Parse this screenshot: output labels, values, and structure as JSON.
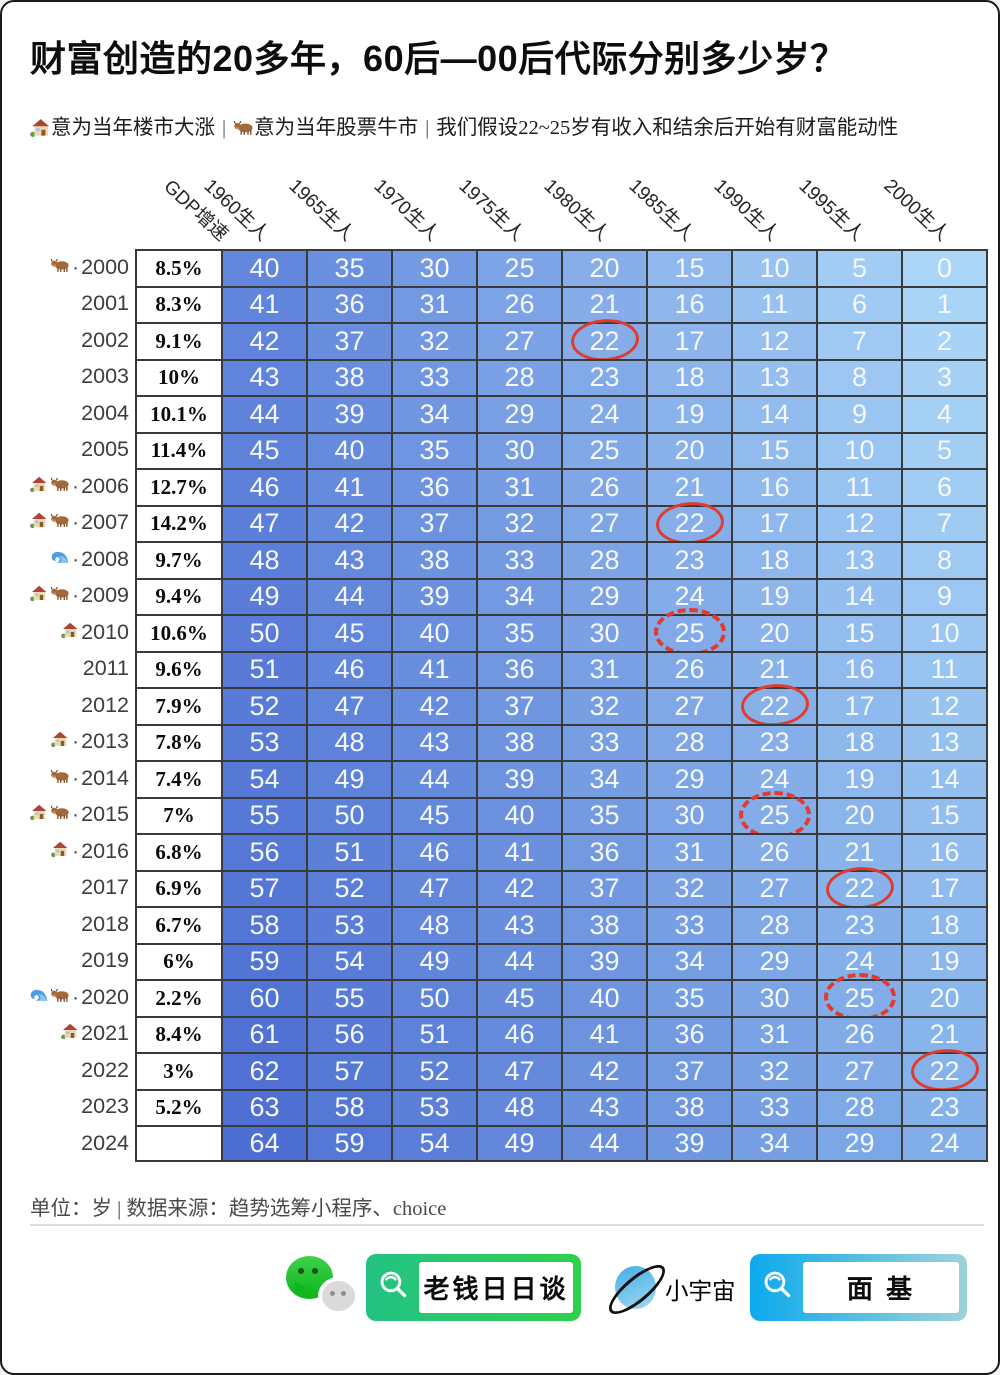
{
  "title": "财富创造的20多年，60后—00后代际分别多少岁？",
  "legend": {
    "separator": "|",
    "housing_icon": "house-icon",
    "housing_text": "意为当年楼市大涨",
    "stock_icon": "ox-icon",
    "stock_text": "意为当年股票牛市",
    "assumption_text": "我们假设22~25岁有收入和结余后开始有财富能动性"
  },
  "chart_data": {
    "type": "table",
    "title": "财富创造的20多年，60后—00后代际分别多少岁？",
    "unit_note": "单位：岁 | 数据来源：趋势选筹小程序、choice",
    "columns": [
      "GDP增速",
      "1960生人",
      "1965生人",
      "1970生人",
      "1975生人",
      "1980生人",
      "1985生人",
      "1990生人",
      "1995生人",
      "2000生人"
    ],
    "grid_line_color": "#3a3a3a",
    "circle_color": "#e23b2e",
    "column_colors_top": [
      "#6286DC",
      "#6B90DF",
      "#749AE3",
      "#7DA4E6",
      "#87AEE9",
      "#90B8ED",
      "#99C2F0",
      "#A2CCF4",
      "#ABD6F7"
    ],
    "column_colors_bottom": [
      "#4E6FD2",
      "#5577D5",
      "#5B7FD8",
      "#6287DA",
      "#698FDD",
      "#6F97E0",
      "#769FE3",
      "#7CA7E6",
      "#82AFE9"
    ],
    "rows": [
      {
        "year": "2000",
        "icons": [
          "ox-icon"
        ],
        "sep": "·",
        "gdp": "8.5%",
        "ages": [
          40,
          35,
          30,
          25,
          20,
          15,
          10,
          5,
          0
        ],
        "circle": null
      },
      {
        "year": "2001",
        "icons": [],
        "sep": "",
        "gdp": "8.3%",
        "ages": [
          41,
          36,
          31,
          26,
          21,
          16,
          11,
          6,
          1
        ],
        "circle": null
      },
      {
        "year": "2002",
        "icons": [],
        "sep": "",
        "gdp": "9.1%",
        "ages": [
          42,
          37,
          32,
          27,
          22,
          17,
          12,
          7,
          2
        ],
        "circle": {
          "col": 4,
          "style": "solid"
        }
      },
      {
        "year": "2003",
        "icons": [],
        "sep": "",
        "gdp": "10%",
        "ages": [
          43,
          38,
          33,
          28,
          23,
          18,
          13,
          8,
          3
        ],
        "circle": null
      },
      {
        "year": "2004",
        "icons": [],
        "sep": "",
        "gdp": "10.1%",
        "ages": [
          44,
          39,
          34,
          29,
          24,
          19,
          14,
          9,
          4
        ],
        "circle": null
      },
      {
        "year": "2005",
        "icons": [],
        "sep": "",
        "gdp": "11.4%",
        "ages": [
          45,
          40,
          35,
          30,
          25,
          20,
          15,
          10,
          5
        ],
        "circle": null
      },
      {
        "year": "2006",
        "icons": [
          "house-icon",
          "ox-icon"
        ],
        "sep": "·",
        "gdp": "12.7%",
        "ages": [
          46,
          41,
          36,
          31,
          26,
          21,
          16,
          11,
          6
        ],
        "circle": null
      },
      {
        "year": "2007",
        "icons": [
          "house-icon",
          "ox-icon"
        ],
        "sep": "·",
        "gdp": "14.2%",
        "ages": [
          47,
          42,
          37,
          32,
          27,
          22,
          17,
          12,
          7
        ],
        "circle": {
          "col": 5,
          "style": "solid"
        }
      },
      {
        "year": "2008",
        "icons": [
          "wave-icon"
        ],
        "sep": "·",
        "gdp": "9.7%",
        "ages": [
          48,
          43,
          38,
          33,
          28,
          23,
          18,
          13,
          8
        ],
        "circle": null
      },
      {
        "year": "2009",
        "icons": [
          "house-icon",
          "ox-icon"
        ],
        "sep": "·",
        "gdp": "9.4%",
        "ages": [
          49,
          44,
          39,
          34,
          29,
          24,
          19,
          14,
          9
        ],
        "circle": null
      },
      {
        "year": "2010",
        "icons": [
          "house-icon"
        ],
        "sep": "",
        "gdp": "10.6%",
        "ages": [
          50,
          45,
          40,
          35,
          30,
          25,
          20,
          15,
          10
        ],
        "circle": {
          "col": 5,
          "style": "dashed"
        }
      },
      {
        "year": "2011",
        "icons": [],
        "sep": "",
        "gdp": "9.6%",
        "ages": [
          51,
          46,
          41,
          36,
          31,
          26,
          21,
          16,
          11
        ],
        "circle": null
      },
      {
        "year": "2012",
        "icons": [],
        "sep": "",
        "gdp": "7.9%",
        "ages": [
          52,
          47,
          42,
          37,
          32,
          27,
          22,
          17,
          12
        ],
        "circle": {
          "col": 6,
          "style": "solid"
        }
      },
      {
        "year": "2013",
        "icons": [
          "house-icon"
        ],
        "sep": "·",
        "gdp": "7.8%",
        "ages": [
          53,
          48,
          43,
          38,
          33,
          28,
          23,
          18,
          13
        ],
        "circle": null
      },
      {
        "year": "2014",
        "icons": [
          "ox-icon"
        ],
        "sep": "·",
        "gdp": "7.4%",
        "ages": [
          54,
          49,
          44,
          39,
          34,
          29,
          24,
          19,
          14
        ],
        "circle": null
      },
      {
        "year": "2015",
        "icons": [
          "house-icon",
          "ox-icon"
        ],
        "sep": "·",
        "gdp": "7%",
        "ages": [
          55,
          50,
          45,
          40,
          35,
          30,
          25,
          20,
          15
        ],
        "circle": {
          "col": 6,
          "style": "dashed"
        }
      },
      {
        "year": "2016",
        "icons": [
          "house-icon"
        ],
        "sep": "·",
        "gdp": "6.8%",
        "ages": [
          56,
          51,
          46,
          41,
          36,
          31,
          26,
          21,
          16
        ],
        "circle": null
      },
      {
        "year": "2017",
        "icons": [],
        "sep": "",
        "gdp": "6.9%",
        "ages": [
          57,
          52,
          47,
          42,
          37,
          32,
          27,
          22,
          17
        ],
        "circle": {
          "col": 7,
          "style": "solid"
        }
      },
      {
        "year": "2018",
        "icons": [],
        "sep": "",
        "gdp": "6.7%",
        "ages": [
          58,
          53,
          48,
          43,
          38,
          33,
          28,
          23,
          18
        ],
        "circle": null
      },
      {
        "year": "2019",
        "icons": [],
        "sep": "",
        "gdp": "6%",
        "ages": [
          59,
          54,
          49,
          44,
          39,
          34,
          29,
          24,
          19
        ],
        "circle": null
      },
      {
        "year": "2020",
        "icons": [
          "wave-icon",
          "ox-icon"
        ],
        "sep": "·",
        "gdp": "2.2%",
        "ages": [
          60,
          55,
          50,
          45,
          40,
          35,
          30,
          25,
          20
        ],
        "circle": {
          "col": 7,
          "style": "dashed"
        }
      },
      {
        "year": "2021",
        "icons": [
          "house-icon"
        ],
        "sep": "",
        "gdp": "8.4%",
        "ages": [
          61,
          56,
          51,
          46,
          41,
          36,
          31,
          26,
          21
        ],
        "circle": null
      },
      {
        "year": "2022",
        "icons": [],
        "sep": "",
        "gdp": "3%",
        "ages": [
          62,
          57,
          52,
          47,
          42,
          37,
          32,
          27,
          22
        ],
        "circle": {
          "col": 8,
          "style": "solid"
        }
      },
      {
        "year": "2023",
        "icons": [],
        "sep": "",
        "gdp": "5.2%",
        "ages": [
          63,
          58,
          53,
          48,
          43,
          38,
          33,
          28,
          23
        ],
        "circle": null
      },
      {
        "year": "2024",
        "icons": [],
        "sep": "",
        "gdp": "",
        "ages": [
          64,
          59,
          54,
          49,
          44,
          39,
          34,
          29,
          24
        ],
        "circle": null
      }
    ]
  },
  "footnote": "单位：岁 | 数据来源：趋势选筹小程序、choice",
  "footer": {
    "wechat_icon": "wechat-icon",
    "search_green_label": "老钱日日谈",
    "podcast_icon": "planet-icon",
    "podcast_label": "小宇宙",
    "search_blue_label": "面 基"
  }
}
